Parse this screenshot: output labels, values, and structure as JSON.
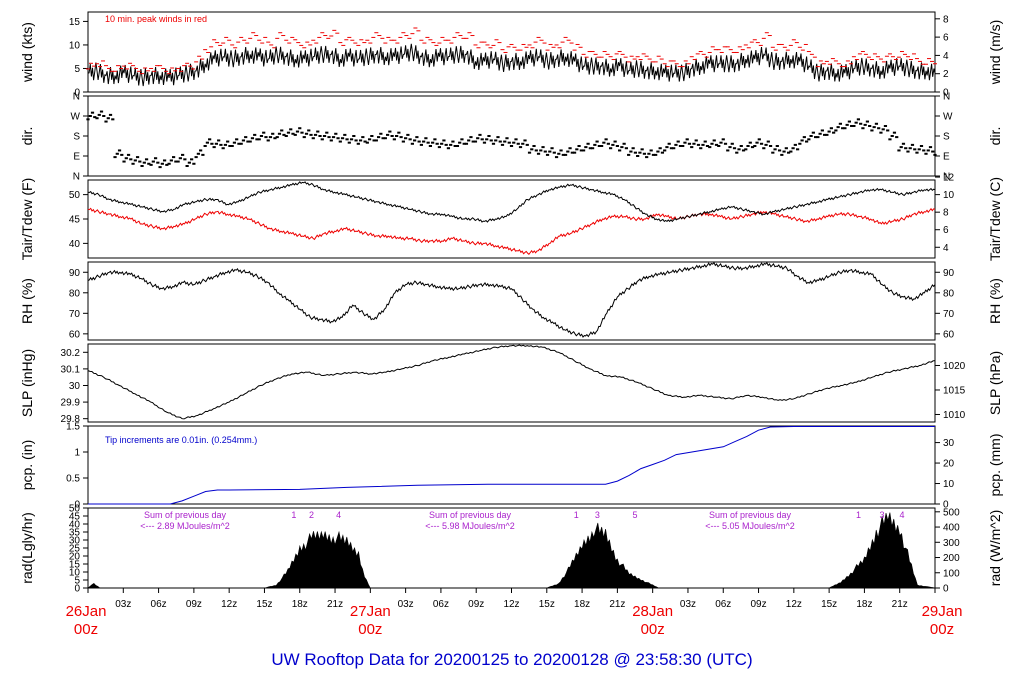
{
  "footer": {
    "title": "UW Rooftop Data for 20200125  to  20200128 @ 23:58:30  (UTC)"
  },
  "colors": {
    "text": "#000000",
    "red": "#ee0000",
    "blue": "#0000cc",
    "purple": "#aa22cc"
  },
  "chart_data": [
    {
      "id": "wind",
      "type": "line",
      "ylabel_left": "wind (kts)",
      "ylabel_right": "wind (m/s)",
      "ylim": [
        0,
        17
      ],
      "ticks_left": [
        0,
        5,
        10,
        15
      ],
      "ticks_right": [
        0,
        2,
        4,
        6,
        8
      ],
      "annotation": "10 min. peak winds in red",
      "series": [
        {
          "name": "wind",
          "color": "#000000",
          "values": [
            4,
            4.5,
            3.5,
            3.5,
            4,
            3.5,
            3,
            3.5,
            3.5,
            3,
            3.5,
            4,
            4.5,
            6,
            7,
            7.5,
            7,
            7.5,
            8,
            7.5,
            7,
            8,
            7.5,
            7,
            7,
            7.5,
            8,
            8,
            7,
            7.5,
            7,
            7.5,
            8,
            7.5,
            7.5,
            8,
            8.5,
            7.5,
            7,
            7.5,
            7.5,
            8,
            8,
            6.5,
            6.5,
            7,
            6,
            6.5,
            6.5,
            7,
            7.5,
            6.5,
            7,
            7.5,
            6.5,
            5.5,
            5.5,
            5.5,
            5,
            5.5,
            4.5,
            5,
            4.5,
            4.5,
            4,
            4,
            4,
            5,
            5.5,
            6,
            6,
            6,
            6,
            7,
            7,
            8,
            6.5,
            6.5,
            7,
            6.5,
            5.5,
            4,
            4.5,
            4,
            4,
            5,
            5.5,
            5,
            4.5,
            5,
            5.5,
            5,
            4.5,
            4.5,
            4
          ]
        },
        {
          "name": "10 min. peak winds",
          "color": "#ee0000",
          "values": [
            5.5,
            6,
            5,
            5,
            5.5,
            5,
            4.5,
            5,
            5,
            4.5,
            5,
            5.5,
            7,
            9,
            10.5,
            11,
            10,
            11,
            12,
            11,
            10,
            12,
            11,
            10.5,
            10,
            11,
            12,
            12.5,
            10.5,
            11,
            10.5,
            11,
            12,
            11,
            11,
            12,
            13,
            11,
            10.5,
            11,
            11,
            12,
            12,
            10,
            10,
            10.5,
            9,
            9.5,
            9.5,
            10,
            11,
            9.5,
            10,
            11,
            9.5,
            8,
            8,
            8,
            7.5,
            8,
            7,
            7.5,
            7,
            7,
            6,
            6,
            6,
            7.5,
            8,
            9,
            9,
            9,
            9,
            10,
            10.5,
            12,
            9.5,
            9.5,
            10.5,
            9.5,
            8,
            6,
            6.5,
            6,
            6,
            7.5,
            8,
            7.5,
            7,
            7.5,
            8,
            7.5,
            6.5,
            6.5,
            6
          ]
        }
      ]
    },
    {
      "id": "dir",
      "type": "scatter",
      "ylabel_left": "dir.",
      "ylabel_right": "dir.",
      "ylim": [
        0,
        360
      ],
      "ticks_left": [
        "N",
        "E",
        "S",
        "W",
        "N"
      ],
      "ticks_right": [
        "N",
        "E",
        "S",
        "W",
        "N"
      ],
      "series": [
        {
          "name": "direction",
          "color": "#000000",
          "values": [
            270,
            275,
            260,
            100,
            80,
            70,
            60,
            65,
            55,
            70,
            80,
            60,
            100,
            150,
            145,
            140,
            150,
            160,
            170,
            180,
            175,
            190,
            195,
            200,
            190,
            185,
            180,
            175,
            170,
            165,
            160,
            165,
            175,
            185,
            180,
            170,
            160,
            155,
            150,
            145,
            140,
            150,
            160,
            170,
            165,
            160,
            155,
            150,
            145,
            120,
            115,
            110,
            100,
            110,
            120,
            130,
            140,
            150,
            140,
            130,
            110,
            105,
            100,
            110,
            130,
            140,
            150,
            145,
            140,
            145,
            150,
            130,
            120,
            135,
            150,
            140,
            120,
            110,
            125,
            160,
            180,
            190,
            200,
            220,
            230,
            240,
            230,
            220,
            210,
            180,
            130,
            125,
            120,
            115,
            110
          ]
        }
      ]
    },
    {
      "id": "temp",
      "type": "line",
      "ylabel_left": "Tair/Tdew (F)",
      "ylabel_right": "Tair/Tdew (C)",
      "ylim": [
        37,
        53
      ],
      "ticks_left": [
        40,
        45,
        50
      ],
      "ticks_right": [
        4,
        6,
        8,
        10,
        12
      ],
      "series": [
        {
          "name": "Tair",
          "color": "#000000",
          "values": [
            50.5,
            50,
            49,
            48.5,
            48,
            47.5,
            47,
            46.5,
            47,
            48,
            48.5,
            49,
            49,
            48,
            48.5,
            49.5,
            50.5,
            51,
            51.5,
            52,
            52.5,
            52,
            51,
            50.5,
            50,
            49.5,
            49,
            48.5,
            48,
            47.5,
            47,
            46.5,
            46,
            46,
            45.5,
            45,
            45,
            44.5,
            45,
            45.5,
            47,
            49,
            50,
            51,
            51.5,
            52,
            51.5,
            51,
            50.5,
            50,
            49,
            47.5,
            46,
            45,
            44.5,
            45,
            45.5,
            46,
            46.5,
            47,
            47.5,
            47,
            46.5,
            46,
            46.5,
            47,
            47.5,
            48,
            48.5,
            49,
            49.5,
            50,
            50.5,
            51,
            51,
            50.5,
            50,
            50.5,
            51,
            51
          ]
        },
        {
          "name": "Tdew",
          "color": "#ee0000",
          "values": [
            47,
            46.5,
            46,
            45.5,
            45,
            44,
            43.5,
            43,
            43.5,
            44,
            45,
            46,
            46.5,
            46,
            45.5,
            45,
            44,
            43,
            42.5,
            42,
            41.5,
            41,
            42,
            42.5,
            43,
            42.5,
            42,
            41.5,
            41.5,
            41,
            41,
            40.5,
            40.5,
            40.5,
            41,
            40.5,
            40,
            40,
            39.5,
            39,
            38.5,
            38,
            38.5,
            40,
            41.5,
            42,
            43,
            44,
            45,
            45.5,
            45.5,
            45,
            45,
            46,
            45.5,
            45,
            45.5,
            46,
            46,
            45.5,
            45,
            45.5,
            46,
            46.5,
            46,
            45.5,
            45,
            44.5,
            45,
            45.5,
            46,
            46,
            45.5,
            45,
            44,
            44.5,
            45,
            46,
            46.5,
            47
          ]
        }
      ]
    },
    {
      "id": "rh",
      "type": "line",
      "ylabel_left": "RH (%)",
      "ylabel_right": "RH (%)",
      "ylim": [
        57,
        95
      ],
      "ticks_left": [
        60,
        70,
        80,
        90
      ],
      "ticks_right": [
        60,
        70,
        80,
        90
      ],
      "series": [
        {
          "name": "RH",
          "color": "#000000",
          "values": [
            86,
            88,
            90,
            90,
            89,
            87,
            84,
            82,
            83,
            85,
            84,
            86,
            88,
            90,
            91,
            90,
            88,
            85,
            80,
            76,
            72,
            68,
            67,
            66,
            68,
            74,
            70,
            67,
            72,
            80,
            84,
            85,
            84,
            83,
            82,
            82,
            83,
            84,
            84,
            83,
            82,
            77,
            72,
            68,
            65,
            62,
            60,
            59,
            61,
            70,
            78,
            82,
            86,
            88,
            89,
            90,
            91,
            92,
            93,
            94,
            93,
            92,
            92,
            93,
            94,
            93,
            92,
            88,
            85,
            86,
            88,
            90,
            91,
            90,
            89,
            84,
            80,
            78,
            77,
            80,
            84
          ]
        }
      ]
    },
    {
      "id": "slp",
      "type": "line",
      "ylabel_left": "SLP (inHg)",
      "ylabel_right": "SLP (hPa)",
      "ylim": [
        29.78,
        30.25
      ],
      "ticks_left": [
        29.8,
        29.9,
        30.0,
        30.1,
        30.2
      ],
      "ticks_right": [
        1010,
        1015,
        1020
      ],
      "series": [
        {
          "name": "SLP",
          "color": "#000000",
          "values": [
            30.09,
            30.05,
            30.0,
            29.95,
            29.9,
            29.84,
            29.8,
            29.82,
            29.86,
            29.9,
            29.95,
            30.0,
            30.04,
            30.07,
            30.08,
            30.06,
            30.07,
            30.08,
            30.07,
            30.08,
            30.1,
            30.12,
            30.15,
            30.17,
            30.19,
            30.21,
            30.23,
            30.24,
            30.24,
            30.23,
            30.2,
            30.15,
            30.1,
            30.06,
            30.05,
            30.02,
            29.98,
            29.94,
            29.93,
            29.94,
            29.93,
            29.92,
            29.94,
            29.93,
            29.91,
            29.92,
            29.95,
            29.98,
            30.0,
            30.02,
            30.05,
            30.08,
            30.1,
            30.12,
            30.15
          ]
        }
      ]
    },
    {
      "id": "pcp",
      "type": "line",
      "ylabel_left": "pcp. (in)",
      "ylabel_right": "pcp. (mm)",
      "ylim": [
        0,
        1.5
      ],
      "ticks_left": [
        0.0,
        0.5,
        1.0,
        1.5
      ],
      "ticks_right": [
        0,
        10,
        20,
        30
      ],
      "annotation": "Tip increments are 0.01in. (0.254mm.)",
      "series": [
        {
          "name": "precip",
          "color": "#0000cc",
          "x": [
            0,
            7,
            8,
            9,
            10,
            11,
            12,
            18,
            22,
            28,
            34,
            40,
            44,
            45,
            46,
            47,
            48,
            49,
            50,
            54,
            55,
            56,
            57,
            58,
            60,
            72
          ],
          "values": [
            0,
            0,
            0.06,
            0.15,
            0.24,
            0.27,
            0.27,
            0.28,
            0.32,
            0.36,
            0.38,
            0.38,
            0.38,
            0.44,
            0.55,
            0.68,
            0.76,
            0.84,
            0.95,
            1.1,
            1.2,
            1.3,
            1.42,
            1.48,
            1.49,
            1.49
          ]
        }
      ]
    },
    {
      "id": "rad",
      "type": "area",
      "ylabel_left": "rad(Lgly/hr)",
      "ylabel_right": "rad (W/m^2)",
      "ylim": [
        0,
        50
      ],
      "ticks_left": [
        0,
        5,
        10,
        15,
        20,
        25,
        30,
        35,
        40,
        45,
        50
      ],
      "ticks_right": [
        0,
        100,
        200,
        300,
        400,
        500
      ],
      "annotations": [
        {
          "line1": "Sum of previous day",
          "line2": "<--- 2.89 MJoules/m^2"
        },
        {
          "line1": "Sum of previous day",
          "line2": "<--- 5.98 MJoules/m^2"
        },
        {
          "line1": "Sum of previous day",
          "line2": "<--- 5.05 MJoules/m^2"
        }
      ],
      "hour_marks": [
        {
          "label": "1",
          "hour": 17.5
        },
        {
          "label": "2",
          "hour": 19
        },
        {
          "label": "4",
          "hour": 21.3
        },
        {
          "label": "1",
          "hour": 41.5
        },
        {
          "label": "3",
          "hour": 43.3
        },
        {
          "label": "5",
          "hour": 46.5
        },
        {
          "label": "1",
          "hour": 65.5
        },
        {
          "label": "3",
          "hour": 67.5
        },
        {
          "label": "4",
          "hour": 69.2
        }
      ],
      "series": [
        {
          "name": "radiation",
          "color": "#000000",
          "x": [
            0,
            0.5,
            1,
            15,
            16,
            17,
            18,
            19,
            20,
            21,
            22,
            23,
            23.5,
            24,
            39,
            40,
            41,
            42,
            43,
            44,
            45,
            46,
            47,
            48,
            48.5,
            63,
            64,
            65,
            66,
            67,
            68,
            69,
            70,
            70.5,
            72
          ],
          "values": [
            0,
            3,
            0,
            0,
            2,
            12,
            28,
            35,
            38,
            36,
            33,
            25,
            8,
            0,
            0,
            3,
            15,
            30,
            42,
            38,
            20,
            10,
            6,
            2,
            0,
            0,
            4,
            12,
            20,
            40,
            50,
            42,
            15,
            2,
            0
          ]
        }
      ]
    }
  ],
  "time_axis": {
    "start_label_day": "26Jan",
    "start_label_time": "00z",
    "day_labels": [
      {
        "day": "26Jan",
        "time": "00z",
        "hour": 0
      },
      {
        "day": "27Jan",
        "time": "00z",
        "hour": 24
      },
      {
        "day": "28Jan",
        "time": "00z",
        "hour": 48
      },
      {
        "day": "29Jan",
        "time": "00z",
        "hour": 72
      }
    ],
    "hour_labels": [
      "03z",
      "06z",
      "09z",
      "12z",
      "15z",
      "18z",
      "21z",
      "03z",
      "06z",
      "09z",
      "12z",
      "15z",
      "18z",
      "21z",
      "03z",
      "06z",
      "09z",
      "12z",
      "15z",
      "18z",
      "21z"
    ]
  }
}
